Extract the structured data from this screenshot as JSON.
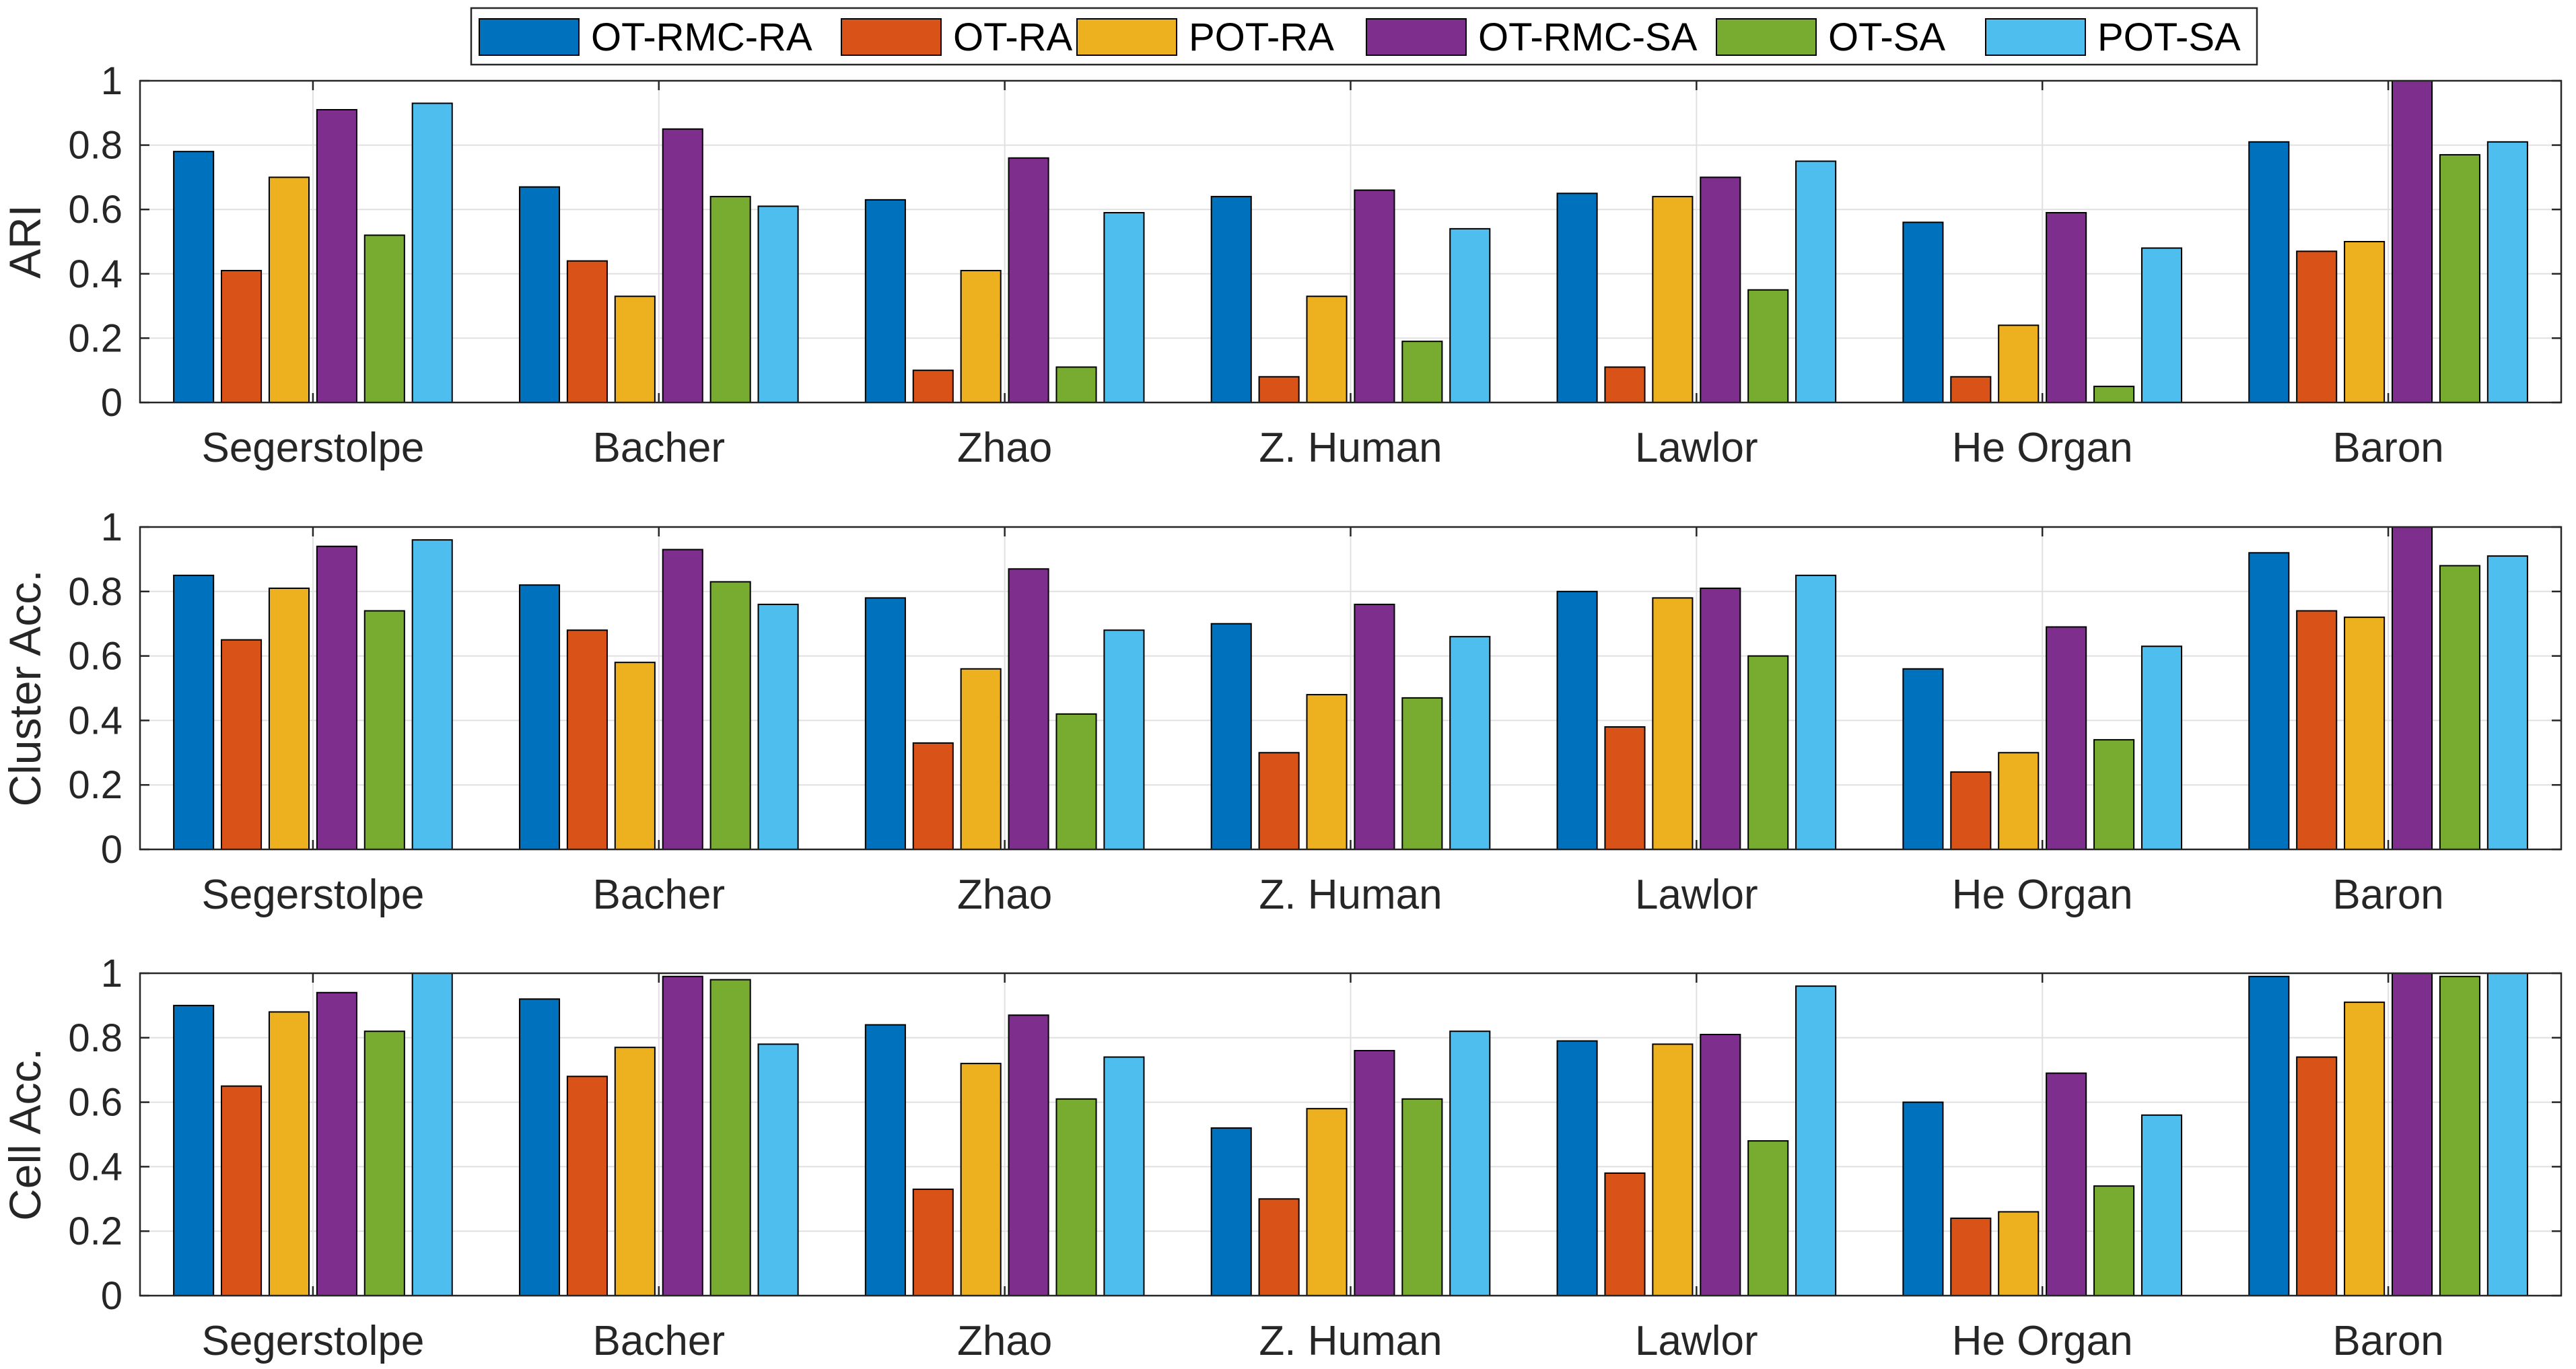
{
  "chart_data": {
    "type": "bar",
    "categories": [
      "Segerstolpe",
      "Bacher",
      "Zhao",
      "Z. Human",
      "Lawlor",
      "He Organ",
      "Baron"
    ],
    "series_names": [
      "OT-RMC-RA",
      "OT-RA",
      "POT-RA",
      "OT-RMC-SA",
      "OT-SA",
      "POT-SA"
    ],
    "series_colors": [
      "#0072BD",
      "#D95319",
      "#EDB120",
      "#7E2F8E",
      "#77AC30",
      "#4DBEEE"
    ],
    "legend": {
      "placement": "top-center",
      "entries": [
        "OT-RMC-RA",
        "OT-RA",
        "POT-RA",
        "OT-RMC-SA",
        "OT-SA",
        "POT-SA"
      ]
    },
    "panels": [
      {
        "ylabel": "ARI",
        "ylim": [
          0,
          1
        ],
        "yticks": [
          "0",
          "0.2",
          "0.4",
          "0.6",
          "0.8",
          "1"
        ],
        "grid": true,
        "series": [
          {
            "name": "OT-RMC-RA",
            "values": [
              0.78,
              0.67,
              0.63,
              0.64,
              0.65,
              0.56,
              0.81
            ]
          },
          {
            "name": "OT-RA",
            "values": [
              0.41,
              0.44,
              0.1,
              0.08,
              0.11,
              0.08,
              0.47
            ]
          },
          {
            "name": "POT-RA",
            "values": [
              0.7,
              0.33,
              0.41,
              0.33,
              0.64,
              0.24,
              0.5
            ]
          },
          {
            "name": "OT-RMC-SA",
            "values": [
              0.91,
              0.85,
              0.76,
              0.66,
              0.7,
              0.59,
              1.0
            ]
          },
          {
            "name": "OT-SA",
            "values": [
              0.52,
              0.64,
              0.11,
              0.19,
              0.35,
              0.05,
              0.77
            ]
          },
          {
            "name": "POT-SA",
            "values": [
              0.93,
              0.61,
              0.59,
              0.54,
              0.75,
              0.48,
              0.81
            ]
          }
        ]
      },
      {
        "ylabel": "Cluster Acc.",
        "ylim": [
          0,
          1
        ],
        "yticks": [
          "0",
          "0.2",
          "0.4",
          "0.6",
          "0.8",
          "1"
        ],
        "grid": true,
        "series": [
          {
            "name": "OT-RMC-RA",
            "values": [
              0.85,
              0.82,
              0.78,
              0.7,
              0.8,
              0.56,
              0.92
            ]
          },
          {
            "name": "OT-RA",
            "values": [
              0.65,
              0.68,
              0.33,
              0.3,
              0.38,
              0.24,
              0.74
            ]
          },
          {
            "name": "POT-RA",
            "values": [
              0.81,
              0.58,
              0.56,
              0.48,
              0.78,
              0.3,
              0.72
            ]
          },
          {
            "name": "OT-RMC-SA",
            "values": [
              0.94,
              0.93,
              0.87,
              0.76,
              0.81,
              0.69,
              1.0
            ]
          },
          {
            "name": "OT-SA",
            "values": [
              0.74,
              0.83,
              0.42,
              0.47,
              0.6,
              0.34,
              0.88
            ]
          },
          {
            "name": "POT-SA",
            "values": [
              0.96,
              0.76,
              0.68,
              0.66,
              0.85,
              0.63,
              0.91
            ]
          }
        ]
      },
      {
        "ylabel": "Cell Acc.",
        "ylim": [
          0,
          1
        ],
        "yticks": [
          "0",
          "0.2",
          "0.4",
          "0.6",
          "0.8",
          "1"
        ],
        "grid": true,
        "series": [
          {
            "name": "OT-RMC-RA",
            "values": [
              0.9,
              0.92,
              0.84,
              0.52,
              0.79,
              0.6,
              0.99
            ]
          },
          {
            "name": "OT-RA",
            "values": [
              0.65,
              0.68,
              0.33,
              0.3,
              0.38,
              0.24,
              0.74
            ]
          },
          {
            "name": "POT-RA",
            "values": [
              0.88,
              0.77,
              0.72,
              0.58,
              0.78,
              0.26,
              0.91
            ]
          },
          {
            "name": "OT-RMC-SA",
            "values": [
              0.94,
              0.99,
              0.87,
              0.76,
              0.81,
              0.69,
              1.0
            ]
          },
          {
            "name": "OT-SA",
            "values": [
              0.82,
              0.98,
              0.61,
              0.61,
              0.48,
              0.34,
              0.99
            ]
          },
          {
            "name": "POT-SA",
            "values": [
              1.0,
              0.78,
              0.74,
              0.82,
              0.96,
              0.56,
              1.0
            ]
          }
        ]
      }
    ]
  }
}
